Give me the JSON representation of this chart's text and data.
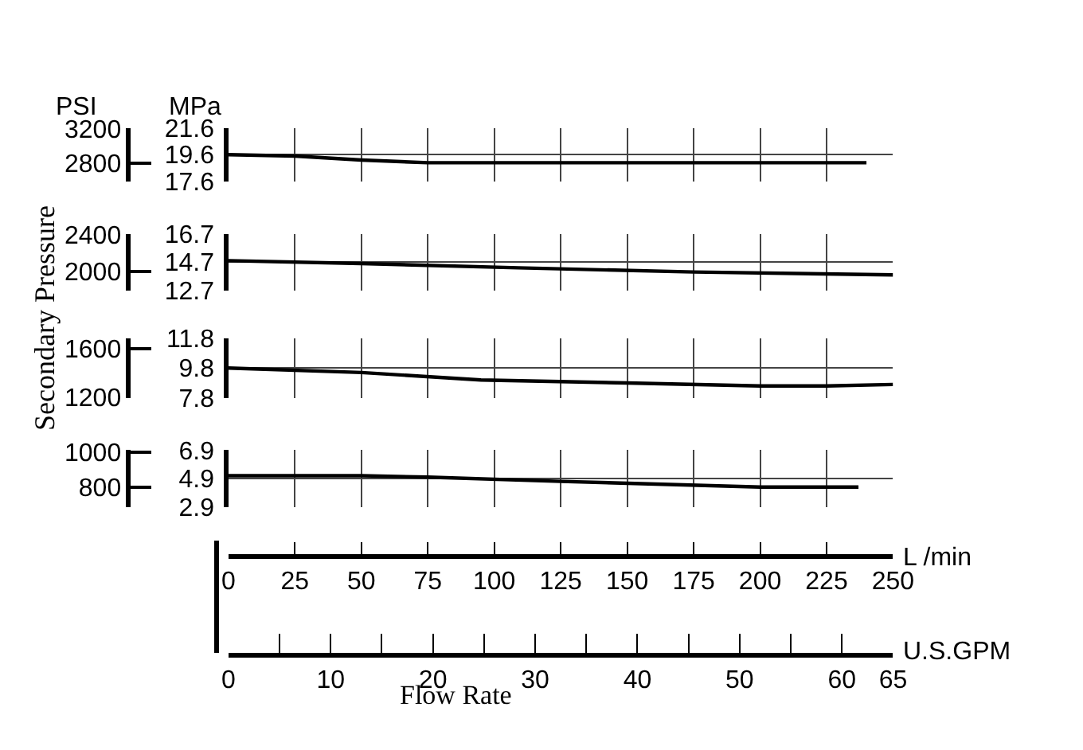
{
  "chart_data": [
    {
      "type": "line",
      "y2label": "Secondary Pressure",
      "annotations": [
        "PSI",
        "MPa"
      ],
      "x": [
        0,
        25,
        50,
        75,
        100,
        240
      ],
      "series": [
        {
          "color": "#000000",
          "values": [
            19.6,
            19.5,
            19.2,
            19.0,
            19.0,
            19.0
          ]
        }
      ],
      "xlim": [
        0,
        250
      ],
      "xticks": [
        0,
        25,
        50,
        75,
        100,
        125,
        150,
        175,
        200,
        225,
        250
      ],
      "ylim": [
        17.6,
        21.6
      ],
      "yticks": [
        17.6,
        19.6,
        21.6
      ],
      "y2lim": [
        2590,
        3210
      ],
      "y2ticks": [
        2800,
        3200
      ],
      "grid": true,
      "tick_labels": "y",
      "line_style": "solid"
    },
    {
      "type": "line",
      "x": [
        0,
        50,
        109,
        175,
        250
      ],
      "series": [
        {
          "color": "#000000",
          "values": [
            14.8,
            14.6,
            14.3,
            14.0,
            13.8
          ]
        }
      ],
      "xlim": [
        0,
        250
      ],
      "xticks": [
        0,
        25,
        50,
        75,
        100,
        125,
        150,
        175,
        200,
        225,
        250
      ],
      "ylim": [
        12.7,
        16.7
      ],
      "yticks": [
        12.7,
        14.7,
        16.7
      ],
      "y2lim": [
        1790,
        2410
      ],
      "y2ticks": [
        2000,
        2400
      ],
      "grid": true,
      "tick_labels": "y",
      "line_style": "solid"
    },
    {
      "type": "line",
      "x": [
        0,
        50,
        95,
        150,
        200,
        225,
        250
      ],
      "series": [
        {
          "color": "#000000",
          "values": [
            9.8,
            9.5,
            9.0,
            8.8,
            8.6,
            8.6,
            8.7
          ]
        }
      ],
      "xlim": [
        0,
        250
      ],
      "xticks": [
        0,
        25,
        50,
        75,
        100,
        125,
        150,
        175,
        200,
        225,
        250
      ],
      "ylim": [
        7.8,
        11.8
      ],
      "yticks": [
        7.8,
        9.8,
        11.8
      ],
      "y2lim": [
        1190,
        1690
      ],
      "y2ticks": [
        1200,
        1600
      ],
      "grid": true,
      "tick_labels": "y",
      "line_style": "solid"
    },
    {
      "type": "line",
      "xlabel": "Flow Rate",
      "annotations": [
        "L /min",
        "U.S.GPM"
      ],
      "x": [
        0,
        50,
        75,
        125,
        200,
        237
      ],
      "series": [
        {
          "color": "#000000",
          "values": [
            5.1,
            5.1,
            5.0,
            4.7,
            4.3,
            4.3
          ]
        }
      ],
      "xlim": [
        0,
        250
      ],
      "xticks": [
        0,
        25,
        50,
        75,
        100,
        125,
        150,
        175,
        200,
        225,
        250
      ],
      "ylim": [
        2.9,
        6.9
      ],
      "yticks": [
        2.9,
        4.9,
        6.9
      ],
      "y2lim": [
        690,
        1010
      ],
      "y2ticks": [
        800,
        1000
      ],
      "x2lim": [
        0,
        65
      ],
      "x2ticks": [
        0,
        {
          "value": 5,
          "label": null
        },
        10,
        {
          "value": 15,
          "label": null
        },
        20,
        {
          "value": 25,
          "label": null
        },
        30,
        {
          "value": 35,
          "label": null
        },
        40,
        {
          "value": 45,
          "label": null
        },
        50,
        {
          "value": 55,
          "label": null
        },
        60,
        65
      ],
      "grid": true,
      "line_style": "solid"
    }
  ]
}
